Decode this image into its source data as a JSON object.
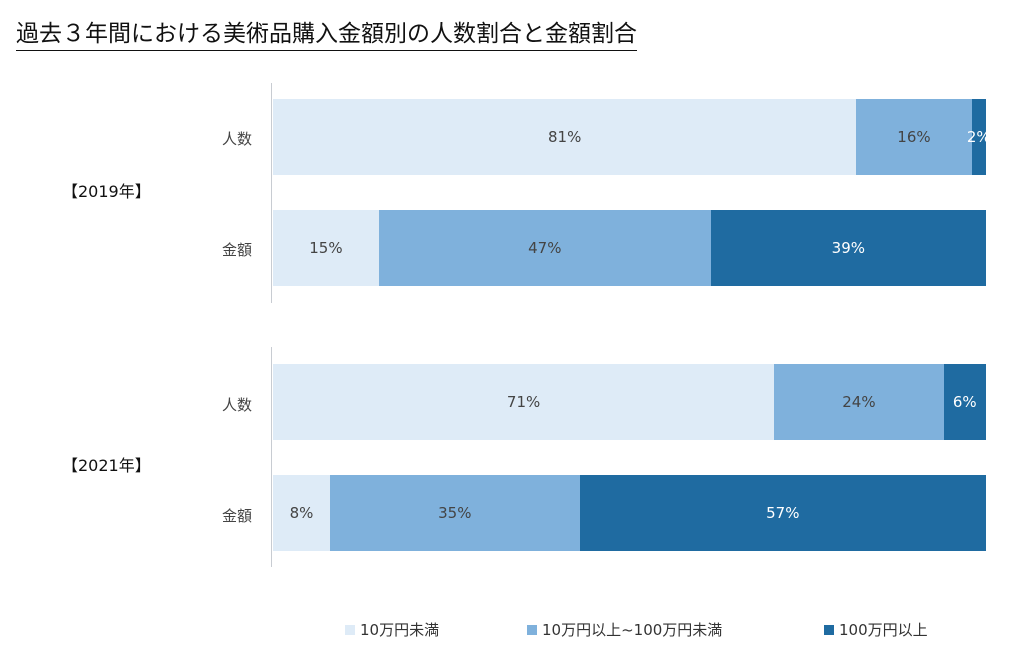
{
  "title": "過去３年間における美術品購入金額別の人数割合と金額割合",
  "chart_data": {
    "type": "bar",
    "orientation": "horizontal-stacked-100",
    "title": "過去３年間における美術品購入金額別の人数割合と金額割合",
    "series": [
      {
        "name": "10万円未満",
        "color": "#deebf7"
      },
      {
        "name": "10万円以上~100万円未満",
        "color": "#7fb1dc"
      },
      {
        "name": "100万円以上",
        "color": "#1f6ba1"
      }
    ],
    "groups": [
      {
        "label": "【2019年】",
        "rows": [
          {
            "label": "人数",
            "values": [
              81,
              16,
              2
            ],
            "value_labels": [
              "81%",
              "16%",
              "2%"
            ]
          },
          {
            "label": "金額",
            "values": [
              15,
              47,
              39
            ],
            "value_labels": [
              "15%",
              "47%",
              "39%"
            ]
          }
        ]
      },
      {
        "label": "【2021年】",
        "rows": [
          {
            "label": "人数",
            "values": [
              71,
              24,
              6
            ],
            "value_labels": [
              "71%",
              "24%",
              "6%"
            ]
          },
          {
            "label": "金額",
            "values": [
              8,
              35,
              57
            ],
            "value_labels": [
              "8%",
              "35%",
              "57%"
            ]
          }
        ]
      }
    ],
    "legend_position": "bottom"
  }
}
